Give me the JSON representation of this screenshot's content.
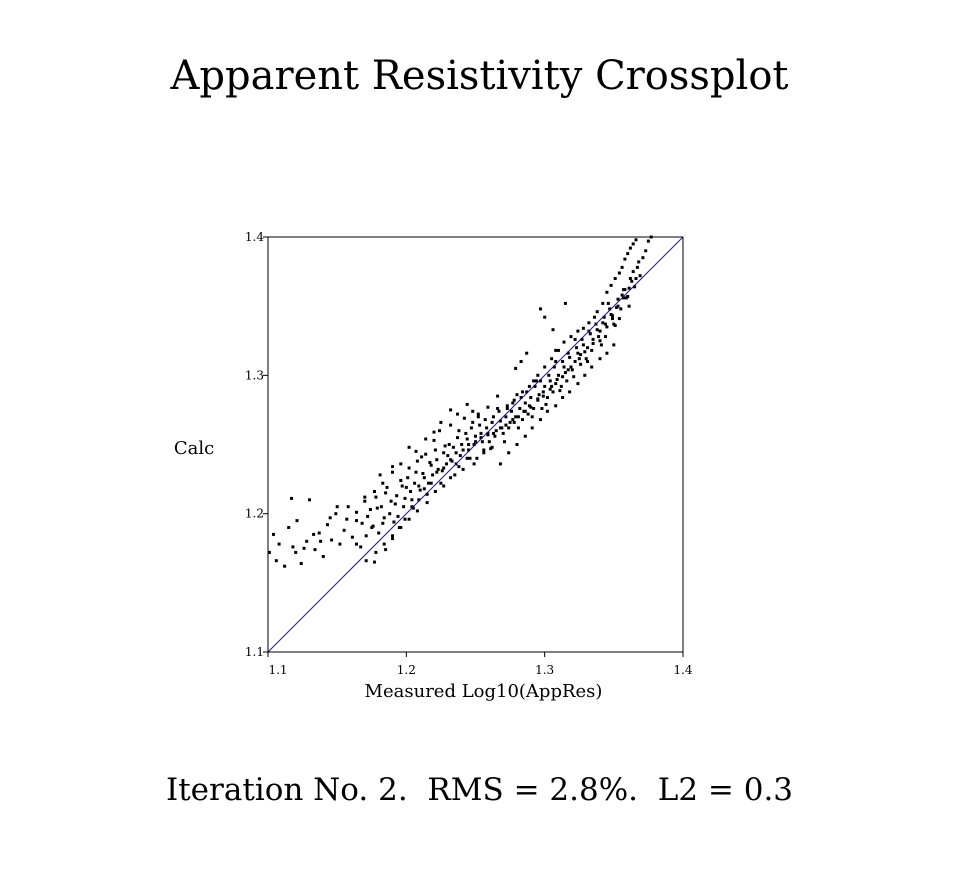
{
  "title": "Apparent Resistivity Crossplot",
  "footer": "Iteration No. 2.  RMS = 2.8%.  L2 = 0.3",
  "chart_data": {
    "type": "scatter",
    "title": "Apparent Resistivity Crossplot",
    "xlabel": "Measured Log10(AppRes)",
    "ylabel": "Calc",
    "xlim": [
      1.1,
      1.4
    ],
    "ylim": [
      1.1,
      1.4
    ],
    "xticks": [
      "1.1",
      "1.2",
      "1.3",
      "1.4"
    ],
    "yticks": [
      "1.1",
      "1.2",
      "1.3",
      "1.4"
    ],
    "grid": false,
    "reference_line": {
      "x": [
        1.1,
        1.4
      ],
      "y": [
        1.1,
        1.4
      ],
      "color": "#1a1a8c"
    },
    "point_color": "#000000",
    "points": [
      [
        1.101,
        1.172
      ],
      [
        1.104,
        1.185
      ],
      [
        1.106,
        1.166
      ],
      [
        1.108,
        1.178
      ],
      [
        1.112,
        1.162
      ],
      [
        1.115,
        1.19
      ],
      [
        1.118,
        1.176
      ],
      [
        1.121,
        1.195
      ],
      [
        1.124,
        1.164
      ],
      [
        1.117,
        1.211
      ],
      [
        1.13,
        1.21
      ],
      [
        1.128,
        1.18
      ],
      [
        1.134,
        1.174
      ],
      [
        1.137,
        1.186
      ],
      [
        1.14,
        1.169
      ],
      [
        1.143,
        1.192
      ],
      [
        1.146,
        1.181
      ],
      [
        1.149,
        1.2
      ],
      [
        1.152,
        1.178
      ],
      [
        1.155,
        1.188
      ],
      [
        1.158,
        1.205
      ],
      [
        1.161,
        1.183
      ],
      [
        1.164,
        1.195
      ],
      [
        1.167,
        1.176
      ],
      [
        1.17,
        1.212
      ],
      [
        1.172,
        1.198
      ],
      [
        1.175,
        1.19
      ],
      [
        1.177,
        1.165
      ],
      [
        1.179,
        1.204
      ],
      [
        1.181,
        1.228
      ],
      [
        1.183,
        1.193
      ],
      [
        1.185,
        1.215
      ],
      [
        1.188,
        1.2
      ],
      [
        1.19,
        1.234
      ],
      [
        1.192,
        1.207
      ],
      [
        1.194,
        1.198
      ],
      [
        1.197,
        1.22
      ],
      [
        1.199,
        1.211
      ],
      [
        1.201,
        1.226
      ],
      [
        1.203,
        1.216
      ],
      [
        1.205,
        1.204
      ],
      [
        1.207,
        1.23
      ],
      [
        1.209,
        1.22
      ],
      [
        1.211,
        1.241
      ],
      [
        1.213,
        1.226
      ],
      [
        1.215,
        1.214
      ],
      [
        1.217,
        1.237
      ],
      [
        1.219,
        1.228
      ],
      [
        1.221,
        1.246
      ],
      [
        1.223,
        1.232
      ],
      [
        1.225,
        1.222
      ],
      [
        1.227,
        1.244
      ],
      [
        1.229,
        1.236
      ],
      [
        1.231,
        1.25
      ],
      [
        1.233,
        1.238
      ],
      [
        1.235,
        1.228
      ],
      [
        1.237,
        1.255
      ],
      [
        1.239,
        1.242
      ],
      [
        1.241,
        1.232
      ],
      [
        1.243,
        1.258
      ],
      [
        1.245,
        1.246
      ],
      [
        1.247,
        1.262
      ],
      [
        1.249,
        1.25
      ],
      [
        1.251,
        1.24
      ],
      [
        1.253,
        1.264
      ],
      [
        1.255,
        1.252
      ],
      [
        1.257,
        1.268
      ],
      [
        1.259,
        1.257
      ],
      [
        1.261,
        1.247
      ],
      [
        1.263,
        1.27
      ],
      [
        1.265,
        1.26
      ],
      [
        1.267,
        1.274
      ],
      [
        1.269,
        1.262
      ],
      [
        1.271,
        1.252
      ],
      [
        1.273,
        1.276
      ],
      [
        1.275,
        1.266
      ],
      [
        1.277,
        1.28
      ],
      [
        1.279,
        1.27
      ],
      [
        1.281,
        1.262
      ],
      [
        1.283,
        1.284
      ],
      [
        1.285,
        1.274
      ],
      [
        1.287,
        1.288
      ],
      [
        1.289,
        1.278
      ],
      [
        1.291,
        1.27
      ],
      [
        1.293,
        1.292
      ],
      [
        1.295,
        1.283
      ],
      [
        1.297,
        1.296
      ],
      [
        1.299,
        1.288
      ],
      [
        1.301,
        1.279
      ],
      [
        1.303,
        1.3
      ],
      [
        1.305,
        1.292
      ],
      [
        1.307,
        1.306
      ],
      [
        1.309,
        1.297
      ],
      [
        1.311,
        1.289
      ],
      [
        1.313,
        1.31
      ],
      [
        1.315,
        1.302
      ],
      [
        1.317,
        1.316
      ],
      [
        1.319,
        1.306
      ],
      [
        1.321,
        1.299
      ],
      [
        1.323,
        1.32
      ],
      [
        1.325,
        1.312
      ],
      [
        1.327,
        1.326
      ],
      [
        1.329,
        1.317
      ],
      [
        1.331,
        1.31
      ],
      [
        1.333,
        1.33
      ],
      [
        1.335,
        1.323
      ],
      [
        1.337,
        1.337
      ],
      [
        1.339,
        1.328
      ],
      [
        1.341,
        1.322
      ],
      [
        1.343,
        1.342
      ],
      [
        1.345,
        1.335
      ],
      [
        1.347,
        1.348
      ],
      [
        1.349,
        1.341
      ],
      [
        1.351,
        1.336
      ],
      [
        1.353,
        1.355
      ],
      [
        1.355,
        1.348
      ],
      [
        1.357,
        1.362
      ],
      [
        1.359,
        1.356
      ],
      [
        1.361,
        1.35
      ],
      [
        1.363,
        1.368
      ],
      [
        1.365,
        1.364
      ],
      [
        1.367,
        1.378
      ],
      [
        1.369,
        1.372
      ],
      [
        1.371,
        1.385
      ],
      [
        1.373,
        1.39
      ],
      [
        1.375,
        1.397
      ],
      [
        1.377,
        1.4
      ],
      [
        1.164,
        1.178
      ],
      [
        1.168,
        1.193
      ],
      [
        1.171,
        1.184
      ],
      [
        1.174,
        1.203
      ],
      [
        1.176,
        1.191
      ],
      [
        1.178,
        1.212
      ],
      [
        1.18,
        1.186
      ],
      [
        1.182,
        1.205
      ],
      [
        1.184,
        1.197
      ],
      [
        1.186,
        1.219
      ],
      [
        1.189,
        1.209
      ],
      [
        1.191,
        1.194
      ],
      [
        1.193,
        1.213
      ],
      [
        1.196,
        1.224
      ],
      [
        1.198,
        1.205
      ],
      [
        1.2,
        1.219
      ],
      [
        1.202,
        1.233
      ],
      [
        1.204,
        1.21
      ],
      [
        1.206,
        1.222
      ],
      [
        1.208,
        1.238
      ],
      [
        1.21,
        1.217
      ],
      [
        1.212,
        1.229
      ],
      [
        1.214,
        1.243
      ],
      [
        1.216,
        1.222
      ],
      [
        1.218,
        1.235
      ],
      [
        1.22,
        1.253
      ],
      [
        1.222,
        1.239
      ],
      [
        1.224,
        1.26
      ],
      [
        1.226,
        1.231
      ],
      [
        1.228,
        1.249
      ],
      [
        1.23,
        1.242
      ],
      [
        1.232,
        1.264
      ],
      [
        1.234,
        1.248
      ],
      [
        1.236,
        1.236
      ],
      [
        1.238,
        1.26
      ],
      [
        1.24,
        1.25
      ],
      [
        1.242,
        1.269
      ],
      [
        1.244,
        1.254
      ],
      [
        1.246,
        1.24
      ],
      [
        1.248,
        1.266
      ],
      [
        1.25,
        1.256
      ],
      [
        1.252,
        1.272
      ],
      [
        1.254,
        1.258
      ],
      [
        1.256,
        1.246
      ],
      [
        1.258,
        1.262
      ],
      [
        1.26,
        1.252
      ],
      [
        1.262,
        1.266
      ],
      [
        1.264,
        1.256
      ],
      [
        1.266,
        1.276
      ],
      [
        1.268,
        1.267
      ],
      [
        1.27,
        1.258
      ],
      [
        1.272,
        1.27
      ],
      [
        1.274,
        1.262
      ],
      [
        1.276,
        1.274
      ],
      [
        1.278,
        1.266
      ],
      [
        1.28,
        1.286
      ],
      [
        1.282,
        1.276
      ],
      [
        1.284,
        1.268
      ],
      [
        1.286,
        1.28
      ],
      [
        1.288,
        1.272
      ],
      [
        1.29,
        1.284
      ],
      [
        1.292,
        1.276
      ],
      [
        1.294,
        1.296
      ],
      [
        1.296,
        1.286
      ],
      [
        1.298,
        1.276
      ],
      [
        1.3,
        1.292
      ],
      [
        1.302,
        1.284
      ],
      [
        1.304,
        1.296
      ],
      [
        1.306,
        1.288
      ],
      [
        1.308,
        1.31
      ],
      [
        1.31,
        1.3
      ],
      [
        1.312,
        1.292
      ],
      [
        1.314,
        1.306
      ],
      [
        1.316,
        1.296
      ],
      [
        1.318,
        1.313
      ],
      [
        1.32,
        1.304
      ],
      [
        1.322,
        1.326
      ],
      [
        1.324,
        1.316
      ],
      [
        1.326,
        1.308
      ],
      [
        1.328,
        1.322
      ],
      [
        1.33,
        1.312
      ],
      [
        1.332,
        1.332
      ],
      [
        1.334,
        1.318
      ],
      [
        1.336,
        1.342
      ],
      [
        1.338,
        1.333
      ],
      [
        1.34,
        1.325
      ],
      [
        1.342,
        1.338
      ],
      [
        1.344,
        1.328
      ],
      [
        1.346,
        1.352
      ],
      [
        1.348,
        1.344
      ],
      [
        1.35,
        1.337
      ],
      [
        1.352,
        1.349
      ],
      [
        1.354,
        1.341
      ],
      [
        1.356,
        1.358
      ],
      [
        1.358,
        1.362
      ],
      [
        1.36,
        1.357
      ],
      [
        1.362,
        1.37
      ],
      [
        1.364,
        1.375
      ],
      [
        1.366,
        1.37
      ],
      [
        1.368,
        1.382
      ],
      [
        1.185,
        1.174
      ],
      [
        1.19,
        1.182
      ],
      [
        1.195,
        1.19
      ],
      [
        1.199,
        1.196
      ],
      [
        1.204,
        1.205
      ],
      [
        1.209,
        1.21
      ],
      [
        1.213,
        1.218
      ],
      [
        1.218,
        1.222
      ],
      [
        1.222,
        1.23
      ],
      [
        1.227,
        1.233
      ],
      [
        1.232,
        1.239
      ],
      [
        1.236,
        1.244
      ],
      [
        1.241,
        1.246
      ],
      [
        1.245,
        1.25
      ],
      [
        1.25,
        1.252
      ],
      [
        1.254,
        1.255
      ],
      [
        1.259,
        1.258
      ],
      [
        1.263,
        1.258
      ],
      [
        1.268,
        1.262
      ],
      [
        1.272,
        1.264
      ],
      [
        1.277,
        1.268
      ],
      [
        1.281,
        1.27
      ],
      [
        1.286,
        1.274
      ],
      [
        1.29,
        1.277
      ],
      [
        1.295,
        1.282
      ],
      [
        1.299,
        1.285
      ],
      [
        1.304,
        1.29
      ],
      [
        1.308,
        1.294
      ],
      [
        1.313,
        1.299
      ],
      [
        1.317,
        1.304
      ],
      [
        1.322,
        1.31
      ],
      [
        1.326,
        1.315
      ],
      [
        1.331,
        1.32
      ],
      [
        1.335,
        1.326
      ],
      [
        1.34,
        1.332
      ],
      [
        1.344,
        1.337
      ],
      [
        1.349,
        1.343
      ],
      [
        1.353,
        1.35
      ],
      [
        1.357,
        1.356
      ],
      [
        1.361,
        1.363
      ],
      [
        1.3,
        1.342
      ],
      [
        1.297,
        1.348
      ],
      [
        1.306,
        1.333
      ],
      [
        1.315,
        1.352
      ],
      [
        1.308,
        1.318
      ],
      [
        1.279,
        1.305
      ],
      [
        1.283,
        1.31
      ],
      [
        1.287,
        1.316
      ],
      [
        1.292,
        1.296
      ],
      [
        1.266,
        1.285
      ],
      [
        1.259,
        1.277
      ],
      [
        1.252,
        1.27
      ],
      [
        1.248,
        1.274
      ],
      [
        1.244,
        1.279
      ],
      [
        1.237,
        1.272
      ],
      [
        1.232,
        1.275
      ],
      [
        1.225,
        1.266
      ],
      [
        1.22,
        1.259
      ],
      [
        1.214,
        1.254
      ],
      [
        1.207,
        1.245
      ],
      [
        1.202,
        1.248
      ],
      [
        1.196,
        1.236
      ],
      [
        1.19,
        1.23
      ],
      [
        1.183,
        1.222
      ],
      [
        1.177,
        1.216
      ],
      [
        1.17,
        1.209
      ],
      [
        1.164,
        1.201
      ],
      [
        1.157,
        1.196
      ],
      [
        1.15,
        1.205
      ],
      [
        1.145,
        1.197
      ],
      [
        1.138,
        1.18
      ],
      [
        1.133,
        1.185
      ],
      [
        1.126,
        1.175
      ],
      [
        1.12,
        1.172
      ],
      [
        1.268,
        1.236
      ],
      [
        1.274,
        1.244
      ],
      [
        1.28,
        1.25
      ],
      [
        1.286,
        1.256
      ],
      [
        1.291,
        1.262
      ],
      [
        1.297,
        1.268
      ],
      [
        1.302,
        1.274
      ],
      [
        1.308,
        1.278
      ],
      [
        1.313,
        1.284
      ],
      [
        1.318,
        1.288
      ],
      [
        1.324,
        1.294
      ],
      [
        1.329,
        1.3
      ],
      [
        1.334,
        1.306
      ],
      [
        1.34,
        1.312
      ],
      [
        1.345,
        1.316
      ],
      [
        1.35,
        1.322
      ],
      [
        1.238,
        1.234
      ],
      [
        1.244,
        1.24
      ],
      [
        1.249,
        1.236
      ],
      [
        1.256,
        1.244
      ],
      [
        1.262,
        1.248
      ],
      [
        1.232,
        1.226
      ],
      [
        1.227,
        1.22
      ],
      [
        1.221,
        1.216
      ],
      [
        1.215,
        1.208
      ],
      [
        1.208,
        1.202
      ],
      [
        1.202,
        1.196
      ],
      [
        1.196,
        1.19
      ],
      [
        1.19,
        1.184
      ],
      [
        1.184,
        1.178
      ],
      [
        1.178,
        1.172
      ],
      [
        1.171,
        1.166
      ],
      [
        1.338,
        1.346
      ],
      [
        1.342,
        1.352
      ],
      [
        1.345,
        1.36
      ],
      [
        1.348,
        1.365
      ],
      [
        1.351,
        1.37
      ],
      [
        1.354,
        1.374
      ],
      [
        1.356,
        1.378
      ],
      [
        1.358,
        1.384
      ],
      [
        1.36,
        1.388
      ],
      [
        1.362,
        1.392
      ],
      [
        1.364,
        1.395
      ],
      [
        1.366,
        1.398
      ],
      [
        1.332,
        1.338
      ],
      [
        1.328,
        1.334
      ],
      [
        1.324,
        1.332
      ],
      [
        1.319,
        1.328
      ],
      [
        1.314,
        1.324
      ],
      [
        1.31,
        1.318
      ],
      [
        1.305,
        1.312
      ],
      [
        1.3,
        1.306
      ],
      [
        1.295,
        1.3
      ],
      [
        1.289,
        1.292
      ],
      [
        1.284,
        1.288
      ],
      [
        1.278,
        1.282
      ],
      [
        1.273,
        1.278
      ]
    ]
  }
}
